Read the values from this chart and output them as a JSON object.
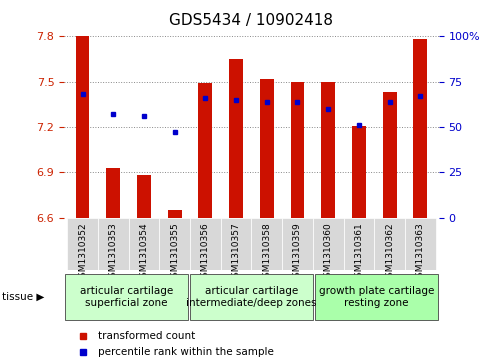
{
  "title": "GDS5434 / 10902418",
  "samples": [
    "GSM1310352",
    "GSM1310353",
    "GSM1310354",
    "GSM1310355",
    "GSM1310356",
    "GSM1310357",
    "GSM1310358",
    "GSM1310359",
    "GSM1310360",
    "GSM1310361",
    "GSM1310362",
    "GSM1310363"
  ],
  "bar_values": [
    7.8,
    6.93,
    6.88,
    6.65,
    7.49,
    7.65,
    7.52,
    7.5,
    7.5,
    7.21,
    7.43,
    7.78
  ],
  "percentile_values": [
    68,
    57,
    56,
    47,
    66,
    65,
    64,
    64,
    60,
    51,
    64,
    67
  ],
  "ylim": [
    6.6,
    7.8
  ],
  "ylim_right": [
    0,
    100
  ],
  "yticks_left": [
    6.6,
    6.9,
    7.2,
    7.5,
    7.8
  ],
  "yticks_right": [
    0,
    25,
    50,
    75,
    100
  ],
  "bar_color": "#cc1100",
  "dot_color": "#0000cc",
  "bar_bottom": 6.6,
  "groups": [
    {
      "label": "articular cartilage\nsuperficial zone",
      "start": 0,
      "end": 3,
      "color": "#ccffcc"
    },
    {
      "label": "articular cartilage\nintermediate/deep zones",
      "start": 4,
      "end": 7,
      "color": "#ccffcc"
    },
    {
      "label": "growth plate cartilage\nresting zone",
      "start": 8,
      "end": 11,
      "color": "#aaffaa"
    }
  ],
  "tissue_label": "tissue",
  "legend_bar_label": "transformed count",
  "legend_dot_label": "percentile rank within the sample",
  "dotted_line_color": "#888888",
  "tick_label_color_left": "#cc2200",
  "tick_label_color_right": "#0000cc",
  "title_fontsize": 11,
  "sample_label_fontsize": 6.5,
  "group_label_fontsize": 7.5,
  "legend_fontsize": 7.5
}
